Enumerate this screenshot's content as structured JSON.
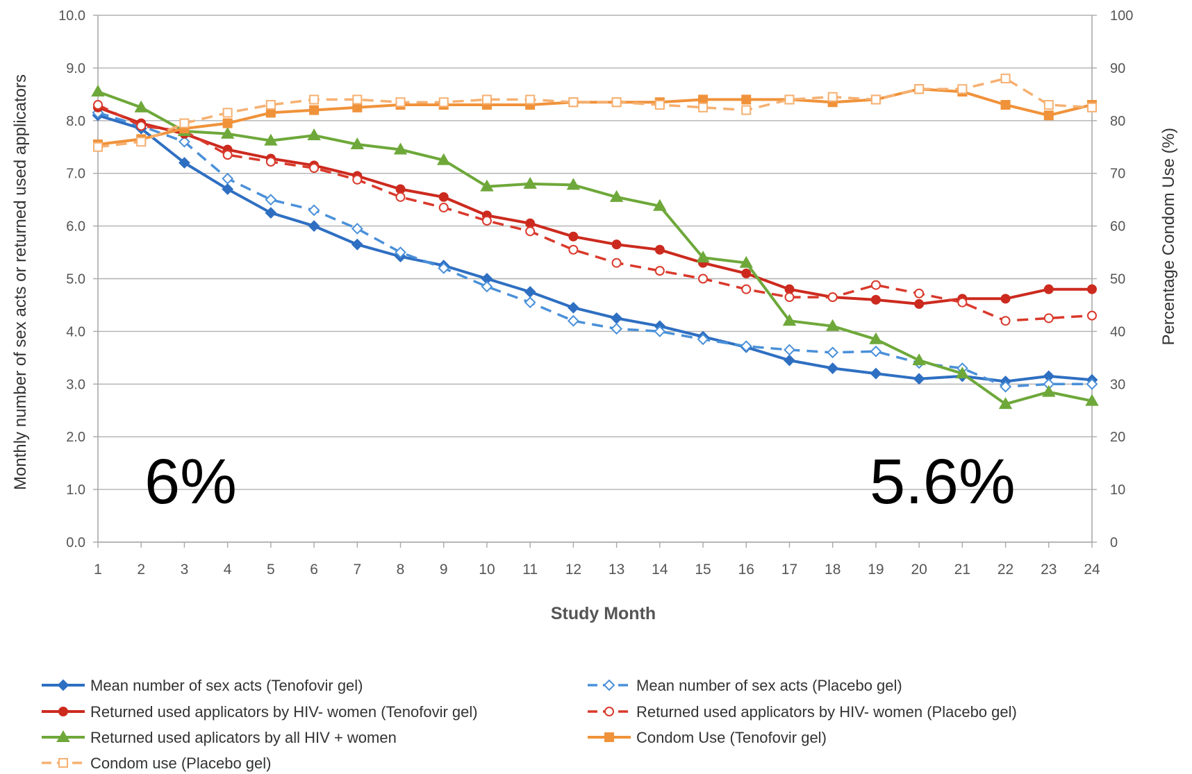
{
  "chart_data": {
    "type": "line",
    "xlabel": "Study Month",
    "ylabel_left": "Monthly number of sex acts or returned used applicators",
    "ylabel_right": "Percentage Condom Use (%)",
    "ylim_left": [
      0,
      10
    ],
    "ylim_right": [
      0,
      100
    ],
    "grid": true,
    "legend_position": "bottom",
    "categories": [
      "1",
      "2",
      "3",
      "4",
      "5",
      "6",
      "7",
      "8",
      "9",
      "10",
      "11",
      "12",
      "13",
      "14",
      "15",
      "16",
      "17",
      "18",
      "19",
      "20",
      "21",
      "22",
      "23",
      "24"
    ],
    "left_tick_labels": [
      "0.0",
      "1.0",
      "2.0",
      "3.0",
      "4.0",
      "5.0",
      "6.0",
      "7.0",
      "8.0",
      "9.0",
      "10.0"
    ],
    "right_tick_labels": [
      "0",
      "10",
      "20",
      "30",
      "40",
      "50",
      "60",
      "70",
      "80",
      "90",
      "100"
    ],
    "series": [
      {
        "name": "Mean number of sex acts (Tenofovir gel)",
        "axis": "left",
        "color": "#2e6fc2",
        "dashed": false,
        "marker": "diamond",
        "values": [
          8.1,
          7.85,
          7.2,
          6.7,
          6.25,
          6.0,
          5.65,
          5.42,
          5.25,
          5.0,
          4.75,
          4.45,
          4.25,
          4.1,
          3.9,
          3.7,
          3.45,
          3.3,
          3.2,
          3.1,
          3.15,
          3.05,
          3.15,
          3.08
        ]
      },
      {
        "name": "Mean number of sex acts (Placebo gel)",
        "axis": "left",
        "color": "#4a90d9",
        "dashed": true,
        "marker": "open-diamond",
        "values": [
          8.15,
          7.9,
          7.6,
          6.9,
          6.5,
          6.3,
          5.95,
          5.5,
          5.2,
          4.85,
          4.55,
          4.2,
          4.05,
          4.0,
          3.85,
          3.72,
          3.65,
          3.6,
          3.62,
          3.4,
          3.3,
          2.95,
          3.0,
          3.0
        ]
      },
      {
        "name": "Returned used applicators by HIV- women (Tenofovir gel)",
        "axis": "left",
        "color": "#cc2a1e",
        "dashed": false,
        "marker": "circle",
        "values": [
          8.25,
          7.95,
          7.75,
          7.45,
          7.28,
          7.15,
          6.95,
          6.7,
          6.55,
          6.2,
          6.05,
          5.8,
          5.65,
          5.55,
          5.3,
          5.1,
          4.8,
          4.65,
          4.6,
          4.52,
          4.62,
          4.62,
          4.8,
          4.8
        ]
      },
      {
        "name": "Returned used applicators by HIV- women (Placebo gel)",
        "axis": "left",
        "color": "#d9392b",
        "dashed": true,
        "marker": "open-circle",
        "values": [
          8.3,
          7.9,
          7.8,
          7.35,
          7.22,
          7.1,
          6.88,
          6.55,
          6.35,
          6.1,
          5.9,
          5.55,
          5.3,
          5.15,
          5.0,
          4.8,
          4.65,
          4.65,
          4.88,
          4.72,
          4.55,
          4.2,
          4.25,
          4.3
        ]
      },
      {
        "name": "Returned used aplicators by all HIV + women",
        "axis": "left",
        "color": "#6ea83a",
        "dashed": false,
        "marker": "triangle",
        "values": [
          8.55,
          8.25,
          7.8,
          7.75,
          7.62,
          7.72,
          7.55,
          7.45,
          7.25,
          6.75,
          6.8,
          6.78,
          6.55,
          6.38,
          5.4,
          5.3,
          4.2,
          4.1,
          3.85,
          3.45,
          3.2,
          2.62,
          2.85,
          2.68
        ]
      },
      {
        "name": "Condom Use (Tenofovir gel)",
        "axis": "right",
        "color": "#f0923a",
        "dashed": false,
        "marker": "square",
        "values": [
          75.5,
          76.5,
          78.5,
          79.5,
          81.5,
          82.0,
          82.5,
          83.0,
          83.0,
          83.0,
          83.0,
          83.5,
          83.5,
          83.5,
          84.0,
          84.0,
          84.0,
          83.5,
          84.0,
          86.0,
          85.5,
          83.0,
          81.0,
          83.0
        ]
      },
      {
        "name": "Condom use (Placebo gel)",
        "axis": "right",
        "color": "#f6b071",
        "dashed": true,
        "marker": "open-square",
        "values": [
          75.0,
          76.0,
          79.5,
          81.5,
          83.0,
          84.0,
          84.0,
          83.5,
          83.5,
          84.0,
          84.0,
          83.5,
          83.5,
          83.0,
          82.5,
          82.0,
          84.0,
          84.5,
          84.0,
          86.0,
          86.0,
          88.0,
          83.0,
          82.5
        ]
      }
    ],
    "annotations": [
      "6%",
      "5.6%"
    ]
  }
}
